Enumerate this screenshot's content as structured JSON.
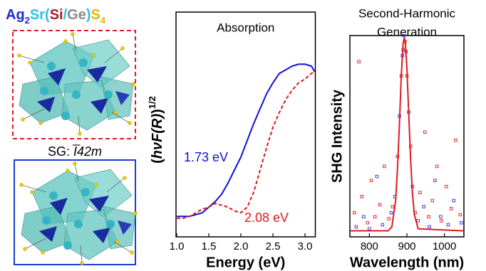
{
  "formula": [
    {
      "text": "Ag",
      "color": "#1a2bd6"
    },
    {
      "text": "2",
      "color": "#1a2bd6",
      "sub": true
    },
    {
      "text": "Sr",
      "color": "#27c3e6"
    },
    {
      "text": "(",
      "color": "#27c3e6"
    },
    {
      "text": "Si",
      "color": "#b0182a"
    },
    {
      "text": "/",
      "color": "#27c3e6"
    },
    {
      "text": "Ge",
      "color": "#8a8a8a"
    },
    {
      "text": ")",
      "color": "#27c3e6"
    },
    {
      "text": "S",
      "color": "#e8b400"
    },
    {
      "text": "4",
      "color": "#e8b400",
      "sub": true
    }
  ],
  "space_group_prefix": "SG:",
  "space_group": "I̅42m",
  "chart_data": [
    {
      "type": "line",
      "title": "Absorption",
      "xlabel": "Energy (eV)",
      "ylabel_parts": [
        "(",
        "hνF(R)",
        ")",
        "1/2"
      ],
      "x": [
        1.0,
        1.1,
        1.2,
        1.3,
        1.4,
        1.5,
        1.6,
        1.7,
        1.8,
        1.9,
        2.0,
        2.1,
        2.2,
        2.3,
        2.4,
        2.5,
        2.6,
        2.7,
        2.8,
        2.9,
        3.0,
        3.1,
        3.15
      ],
      "series": [
        {
          "color": "#1010dd",
          "style": "solid",
          "values": [
            0.11,
            0.11,
            0.11,
            0.12,
            0.13,
            0.16,
            0.19,
            0.23,
            0.29,
            0.36,
            0.43,
            0.52,
            0.61,
            0.69,
            0.77,
            0.83,
            0.88,
            0.9,
            0.92,
            0.93,
            0.93,
            0.92,
            0.89
          ]
        },
        {
          "color": "#e0191e",
          "style": "dashed",
          "values": [
            0.1,
            0.1,
            0.11,
            0.13,
            0.15,
            0.16,
            0.18,
            0.17,
            0.16,
            0.14,
            0.13,
            0.16,
            0.24,
            0.36,
            0.48,
            0.59,
            0.67,
            0.74,
            0.79,
            0.83,
            0.85,
            0.88,
            0.89
          ]
        }
      ],
      "annotations": [
        {
          "text": "1.73 eV",
          "color": "#1010dd"
        },
        {
          "text": "2.08 eV",
          "color": "#e0191e"
        }
      ],
      "xlim": [
        1.0,
        3.15
      ],
      "xticks": [
        {
          "value": 1,
          "label": "1.0"
        },
        1.5,
        {
          "value": 2,
          "label": "2.0"
        },
        2.5,
        {
          "value": 3,
          "label": "3.0"
        }
      ],
      "ylim": [
        0,
        1
      ]
    },
    {
      "type": "scatter",
      "title": [
        "Second-Harmonic",
        "Generation"
      ],
      "xlabel": "Wavelength (nm)",
      "ylabel": "SHG Intensity",
      "series": [
        {
          "color": "#e0191e",
          "style": "points",
          "x": [
            760,
            772,
            780,
            795,
            805,
            815,
            828,
            840,
            852,
            862,
            875,
            885,
            890,
            895,
            900,
            910,
            922,
            935,
            948,
            958,
            968,
            980,
            992,
            1005,
            1018,
            1030,
            1042
          ],
          "values": [
            0.12,
            0.87,
            0.2,
            0.07,
            0.28,
            0.1,
            0.16,
            0.35,
            0.09,
            0.15,
            0.4,
            0.8,
            0.93,
            0.97,
            0.8,
            0.45,
            0.12,
            0.22,
            0.52,
            0.1,
            0.18,
            0.35,
            0.08,
            0.25,
            0.14,
            0.48,
            0.11
          ]
        },
        {
          "color": "#3a2bd0",
          "style": "points",
          "x": [
            765,
            785,
            800,
            820,
            835,
            858,
            868,
            880,
            888,
            892,
            898,
            905,
            915,
            930,
            945,
            960,
            975,
            990,
            1010,
            1025,
            1045
          ],
          "values": [
            0.05,
            0.1,
            0.04,
            0.3,
            0.06,
            0.12,
            0.2,
            0.6,
            0.9,
            1.0,
            0.92,
            0.62,
            0.25,
            0.08,
            0.15,
            0.05,
            0.28,
            0.1,
            0.06,
            0.18,
            0.07
          ]
        },
        {
          "color": "#e0191e",
          "style": "line",
          "x": [
            750,
            850,
            860,
            870,
            875,
            880,
            885,
            890,
            893,
            896,
            900,
            905,
            910,
            915,
            920,
            930,
            1050
          ],
          "values": [
            0.03,
            0.03,
            0.05,
            0.18,
            0.34,
            0.56,
            0.8,
            0.96,
            0.99,
            0.96,
            0.84,
            0.61,
            0.38,
            0.21,
            0.11,
            0.04,
            0.03
          ]
        }
      ],
      "xlim": [
        750,
        1050
      ],
      "xticks": [
        800,
        900,
        1000
      ],
      "ylim": [
        0,
        1
      ]
    }
  ]
}
